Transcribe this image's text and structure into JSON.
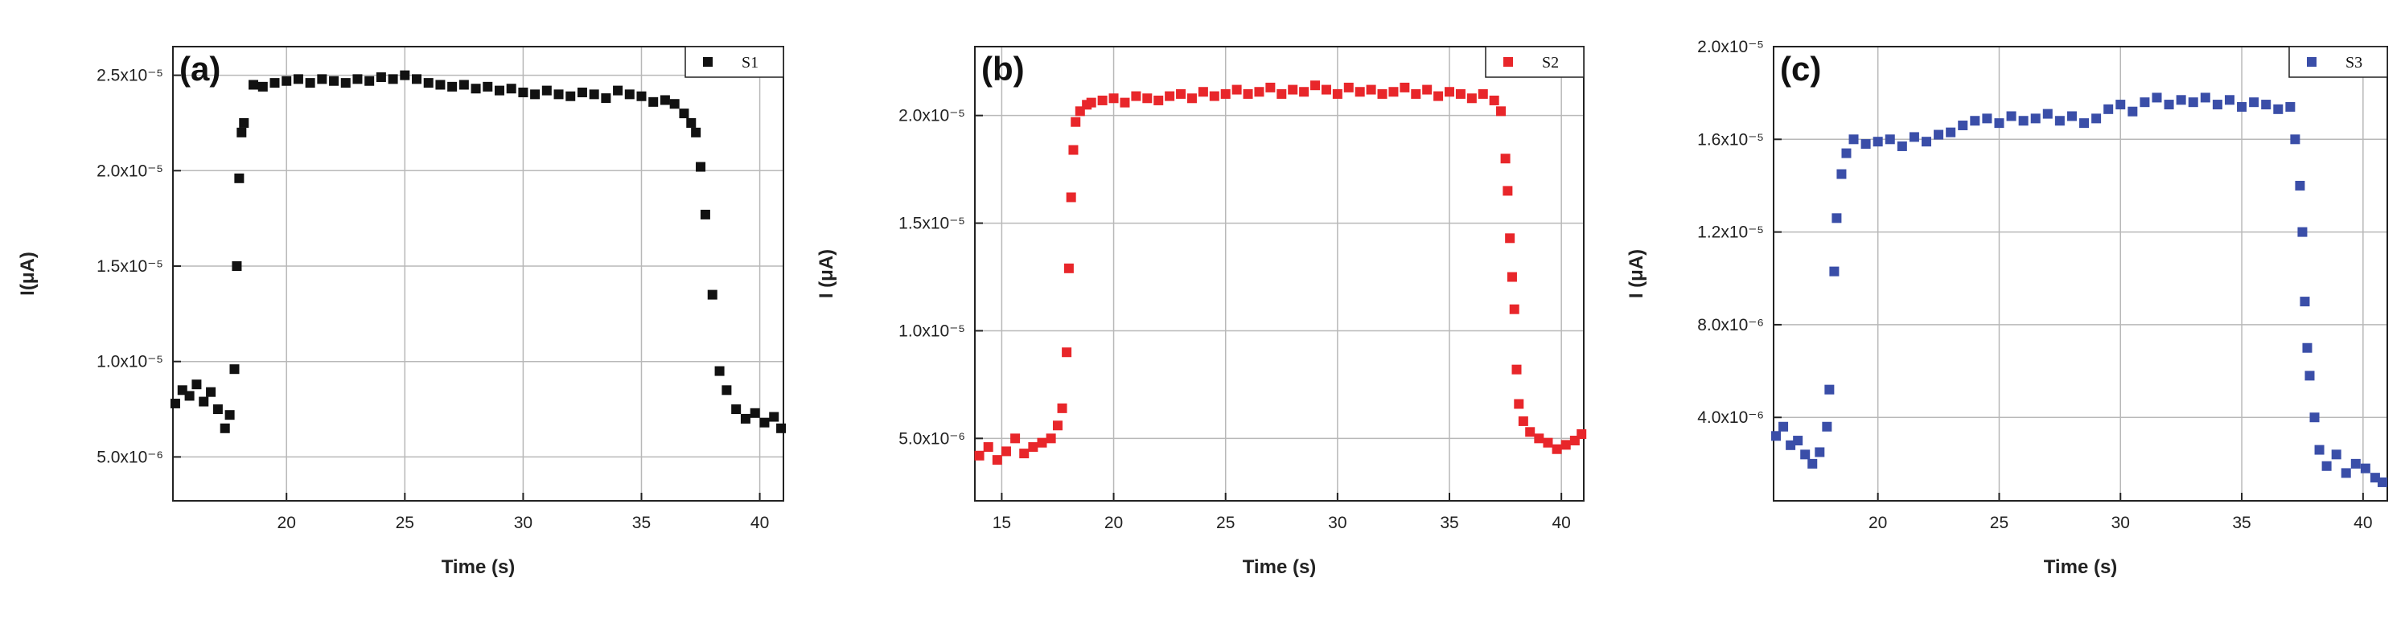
{
  "chart_data": [
    {
      "type": "scatter",
      "annotation": "(a)",
      "xlabel": "Time (s)",
      "ylabel": "I(μA)",
      "grid": true,
      "legend": "upper right",
      "xlim": [
        15.2,
        41
      ],
      "xticks": [
        20,
        25,
        30,
        35,
        40
      ],
      "ylim": [
        2.7e-06,
        2.65e-05
      ],
      "yticks": [
        {
          "value": 5e-06,
          "label": "5.0x10⁻⁶"
        },
        {
          "value": 1e-05,
          "label": "1.0x10⁻⁵"
        },
        {
          "value": 1.5e-05,
          "label": "1.5x10⁻⁵"
        },
        {
          "value": 2e-05,
          "label": "2.0x10⁻⁵"
        },
        {
          "value": 2.5e-05,
          "label": "2.5x10⁻⁵"
        }
      ],
      "x": [
        15.3,
        15.6,
        15.9,
        16.2,
        16.5,
        16.8,
        17.1,
        17.4,
        17.6,
        17.8,
        17.9,
        18.0,
        18.1,
        18.2,
        18.6,
        19.0,
        19.5,
        20.0,
        20.5,
        21.0,
        21.5,
        22.0,
        22.5,
        23.0,
        23.5,
        24.0,
        24.5,
        25.0,
        25.5,
        26.0,
        26.5,
        27.0,
        27.5,
        28.0,
        28.5,
        29.0,
        29.5,
        30.0,
        30.5,
        31.0,
        31.5,
        32.0,
        32.5,
        33.0,
        33.5,
        34.0,
        34.5,
        35.0,
        35.5,
        36.0,
        36.4,
        36.8,
        37.1,
        37.3,
        37.5,
        37.7,
        38.0,
        38.3,
        38.6,
        39.0,
        39.4,
        39.8,
        40.2,
        40.6,
        40.9
      ],
      "series": [
        {
          "name": "S1",
          "color": "#111111",
          "values": [
            7.8e-06,
            8.5e-06,
            8.2e-06,
            8.8e-06,
            7.9e-06,
            8.4e-06,
            7.5e-06,
            6.5e-06,
            7.2e-06,
            9.6e-06,
            1.5e-05,
            1.96e-05,
            2.2e-05,
            2.25e-05,
            2.45e-05,
            2.44e-05,
            2.46e-05,
            2.47e-05,
            2.48e-05,
            2.46e-05,
            2.48e-05,
            2.47e-05,
            2.46e-05,
            2.48e-05,
            2.47e-05,
            2.49e-05,
            2.48e-05,
            2.5e-05,
            2.48e-05,
            2.46e-05,
            2.45e-05,
            2.44e-05,
            2.45e-05,
            2.43e-05,
            2.44e-05,
            2.42e-05,
            2.43e-05,
            2.41e-05,
            2.4e-05,
            2.42e-05,
            2.4e-05,
            2.39e-05,
            2.41e-05,
            2.4e-05,
            2.38e-05,
            2.42e-05,
            2.4e-05,
            2.39e-05,
            2.36e-05,
            2.37e-05,
            2.35e-05,
            2.3e-05,
            2.25e-05,
            2.2e-05,
            2.02e-05,
            1.77e-05,
            1.35e-05,
            9.5e-06,
            8.5e-06,
            7.5e-06,
            7e-06,
            7.3e-06,
            6.8e-06,
            7.1e-06,
            6.5e-06
          ]
        }
      ]
    },
    {
      "type": "scatter",
      "annotation": "(b)",
      "xlabel": "Time (s)",
      "ylabel": "I (μA)",
      "grid": true,
      "legend": "upper right",
      "xlim": [
        13.8,
        41
      ],
      "xticks": [
        15,
        20,
        25,
        30,
        35,
        40
      ],
      "ylim": [
        2.1e-06,
        2.32e-05
      ],
      "yticks": [
        {
          "value": 5e-06,
          "label": "5.0x10⁻⁶"
        },
        {
          "value": 1e-05,
          "label": "1.0x10⁻⁵"
        },
        {
          "value": 1.5e-05,
          "label": "1.5x10⁻⁵"
        },
        {
          "value": 2e-05,
          "label": "2.0x10⁻⁵"
        }
      ],
      "x": [
        14.0,
        14.4,
        14.8,
        15.2,
        15.6,
        16.0,
        16.4,
        16.8,
        17.2,
        17.5,
        17.7,
        17.9,
        18.0,
        18.1,
        18.2,
        18.3,
        18.5,
        18.8,
        19.0,
        19.5,
        20.0,
        20.5,
        21.0,
        21.5,
        22.0,
        22.5,
        23.0,
        23.5,
        24.0,
        24.5,
        25.0,
        25.5,
        26.0,
        26.5,
        27.0,
        27.5,
        28.0,
        28.5,
        29.0,
        29.5,
        30.0,
        30.5,
        31.0,
        31.5,
        32.0,
        32.5,
        33.0,
        33.5,
        34.0,
        34.5,
        35.0,
        35.5,
        36.0,
        36.5,
        37.0,
        37.3,
        37.5,
        37.6,
        37.7,
        37.8,
        37.9,
        38.0,
        38.1,
        38.3,
        38.6,
        39.0,
        39.4,
        39.8,
        40.2,
        40.6,
        40.9
      ],
      "series": [
        {
          "name": "S2",
          "color": "#e8262a",
          "values": [
            4.2e-06,
            4.6e-06,
            4e-06,
            4.4e-06,
            5e-06,
            4.3e-06,
            4.6e-06,
            4.8e-06,
            5e-06,
            5.6e-06,
            6.4e-06,
            9e-06,
            1.29e-05,
            1.62e-05,
            1.84e-05,
            1.97e-05,
            2.02e-05,
            2.05e-05,
            2.06e-05,
            2.07e-05,
            2.08e-05,
            2.06e-05,
            2.09e-05,
            2.08e-05,
            2.07e-05,
            2.09e-05,
            2.1e-05,
            2.08e-05,
            2.11e-05,
            2.09e-05,
            2.1e-05,
            2.12e-05,
            2.1e-05,
            2.11e-05,
            2.13e-05,
            2.1e-05,
            2.12e-05,
            2.11e-05,
            2.14e-05,
            2.12e-05,
            2.1e-05,
            2.13e-05,
            2.11e-05,
            2.12e-05,
            2.1e-05,
            2.11e-05,
            2.13e-05,
            2.1e-05,
            2.12e-05,
            2.09e-05,
            2.11e-05,
            2.1e-05,
            2.08e-05,
            2.1e-05,
            2.07e-05,
            2.02e-05,
            1.8e-05,
            1.65e-05,
            1.43e-05,
            1.25e-05,
            1.1e-05,
            8.2e-06,
            6.6e-06,
            5.8e-06,
            5.3e-06,
            5e-06,
            4.8e-06,
            4.5e-06,
            4.7e-06,
            4.9e-06,
            5.2e-06
          ]
        }
      ]
    },
    {
      "type": "scatter",
      "annotation": "(c)",
      "xlabel": "Time (s)",
      "ylabel": "I (μA)",
      "grid": true,
      "legend": "upper right",
      "xlim": [
        15.7,
        41
      ],
      "xticks": [
        20,
        25,
        30,
        35,
        40
      ],
      "ylim": [
        4e-07,
        2e-05
      ],
      "yticks": [
        {
          "value": 4e-06,
          "label": "4.0x10⁻⁶"
        },
        {
          "value": 8e-06,
          "label": "8.0x10⁻⁶"
        },
        {
          "value": 1.2e-05,
          "label": "1.2x10⁻⁵"
        },
        {
          "value": 1.6e-05,
          "label": "1.6x10⁻⁵"
        },
        {
          "value": 2e-05,
          "label": "2.0x10⁻⁵"
        }
      ],
      "x": [
        15.8,
        16.1,
        16.4,
        16.7,
        17.0,
        17.3,
        17.6,
        17.9,
        18.0,
        18.2,
        18.3,
        18.5,
        18.7,
        19.0,
        19.5,
        20.0,
        20.5,
        21.0,
        21.5,
        22.0,
        22.5,
        23.0,
        23.5,
        24.0,
        24.5,
        25.0,
        25.5,
        26.0,
        26.5,
        27.0,
        27.5,
        28.0,
        28.5,
        29.0,
        29.5,
        30.0,
        30.5,
        31.0,
        31.5,
        32.0,
        32.5,
        33.0,
        33.5,
        34.0,
        34.5,
        35.0,
        35.5,
        36.0,
        36.5,
        37.0,
        37.2,
        37.4,
        37.5,
        37.6,
        37.7,
        37.8,
        38.0,
        38.2,
        38.5,
        38.9,
        39.3,
        39.7,
        40.1,
        40.5,
        40.8
      ],
      "series": [
        {
          "name": "S3",
          "color": "#3a4ea8",
          "values": [
            3.2e-06,
            3.6e-06,
            2.8e-06,
            3e-06,
            2.4e-06,
            2e-06,
            2.5e-06,
            3.6e-06,
            5.2e-06,
            1.03e-05,
            1.26e-05,
            1.45e-05,
            1.54e-05,
            1.6e-05,
            1.58e-05,
            1.59e-05,
            1.6e-05,
            1.57e-05,
            1.61e-05,
            1.59e-05,
            1.62e-05,
            1.63e-05,
            1.66e-05,
            1.68e-05,
            1.69e-05,
            1.67e-05,
            1.7e-05,
            1.68e-05,
            1.69e-05,
            1.71e-05,
            1.68e-05,
            1.7e-05,
            1.67e-05,
            1.69e-05,
            1.73e-05,
            1.75e-05,
            1.72e-05,
            1.76e-05,
            1.78e-05,
            1.75e-05,
            1.77e-05,
            1.76e-05,
            1.78e-05,
            1.75e-05,
            1.77e-05,
            1.74e-05,
            1.76e-05,
            1.75e-05,
            1.73e-05,
            1.74e-05,
            1.6e-05,
            1.4e-05,
            1.2e-05,
            9e-06,
            7e-06,
            5.8e-06,
            4e-06,
            2.6e-06,
            1.9e-06,
            2.4e-06,
            1.6e-06,
            2e-06,
            1.8e-06,
            1.4e-06,
            1.2e-06
          ]
        }
      ]
    }
  ]
}
